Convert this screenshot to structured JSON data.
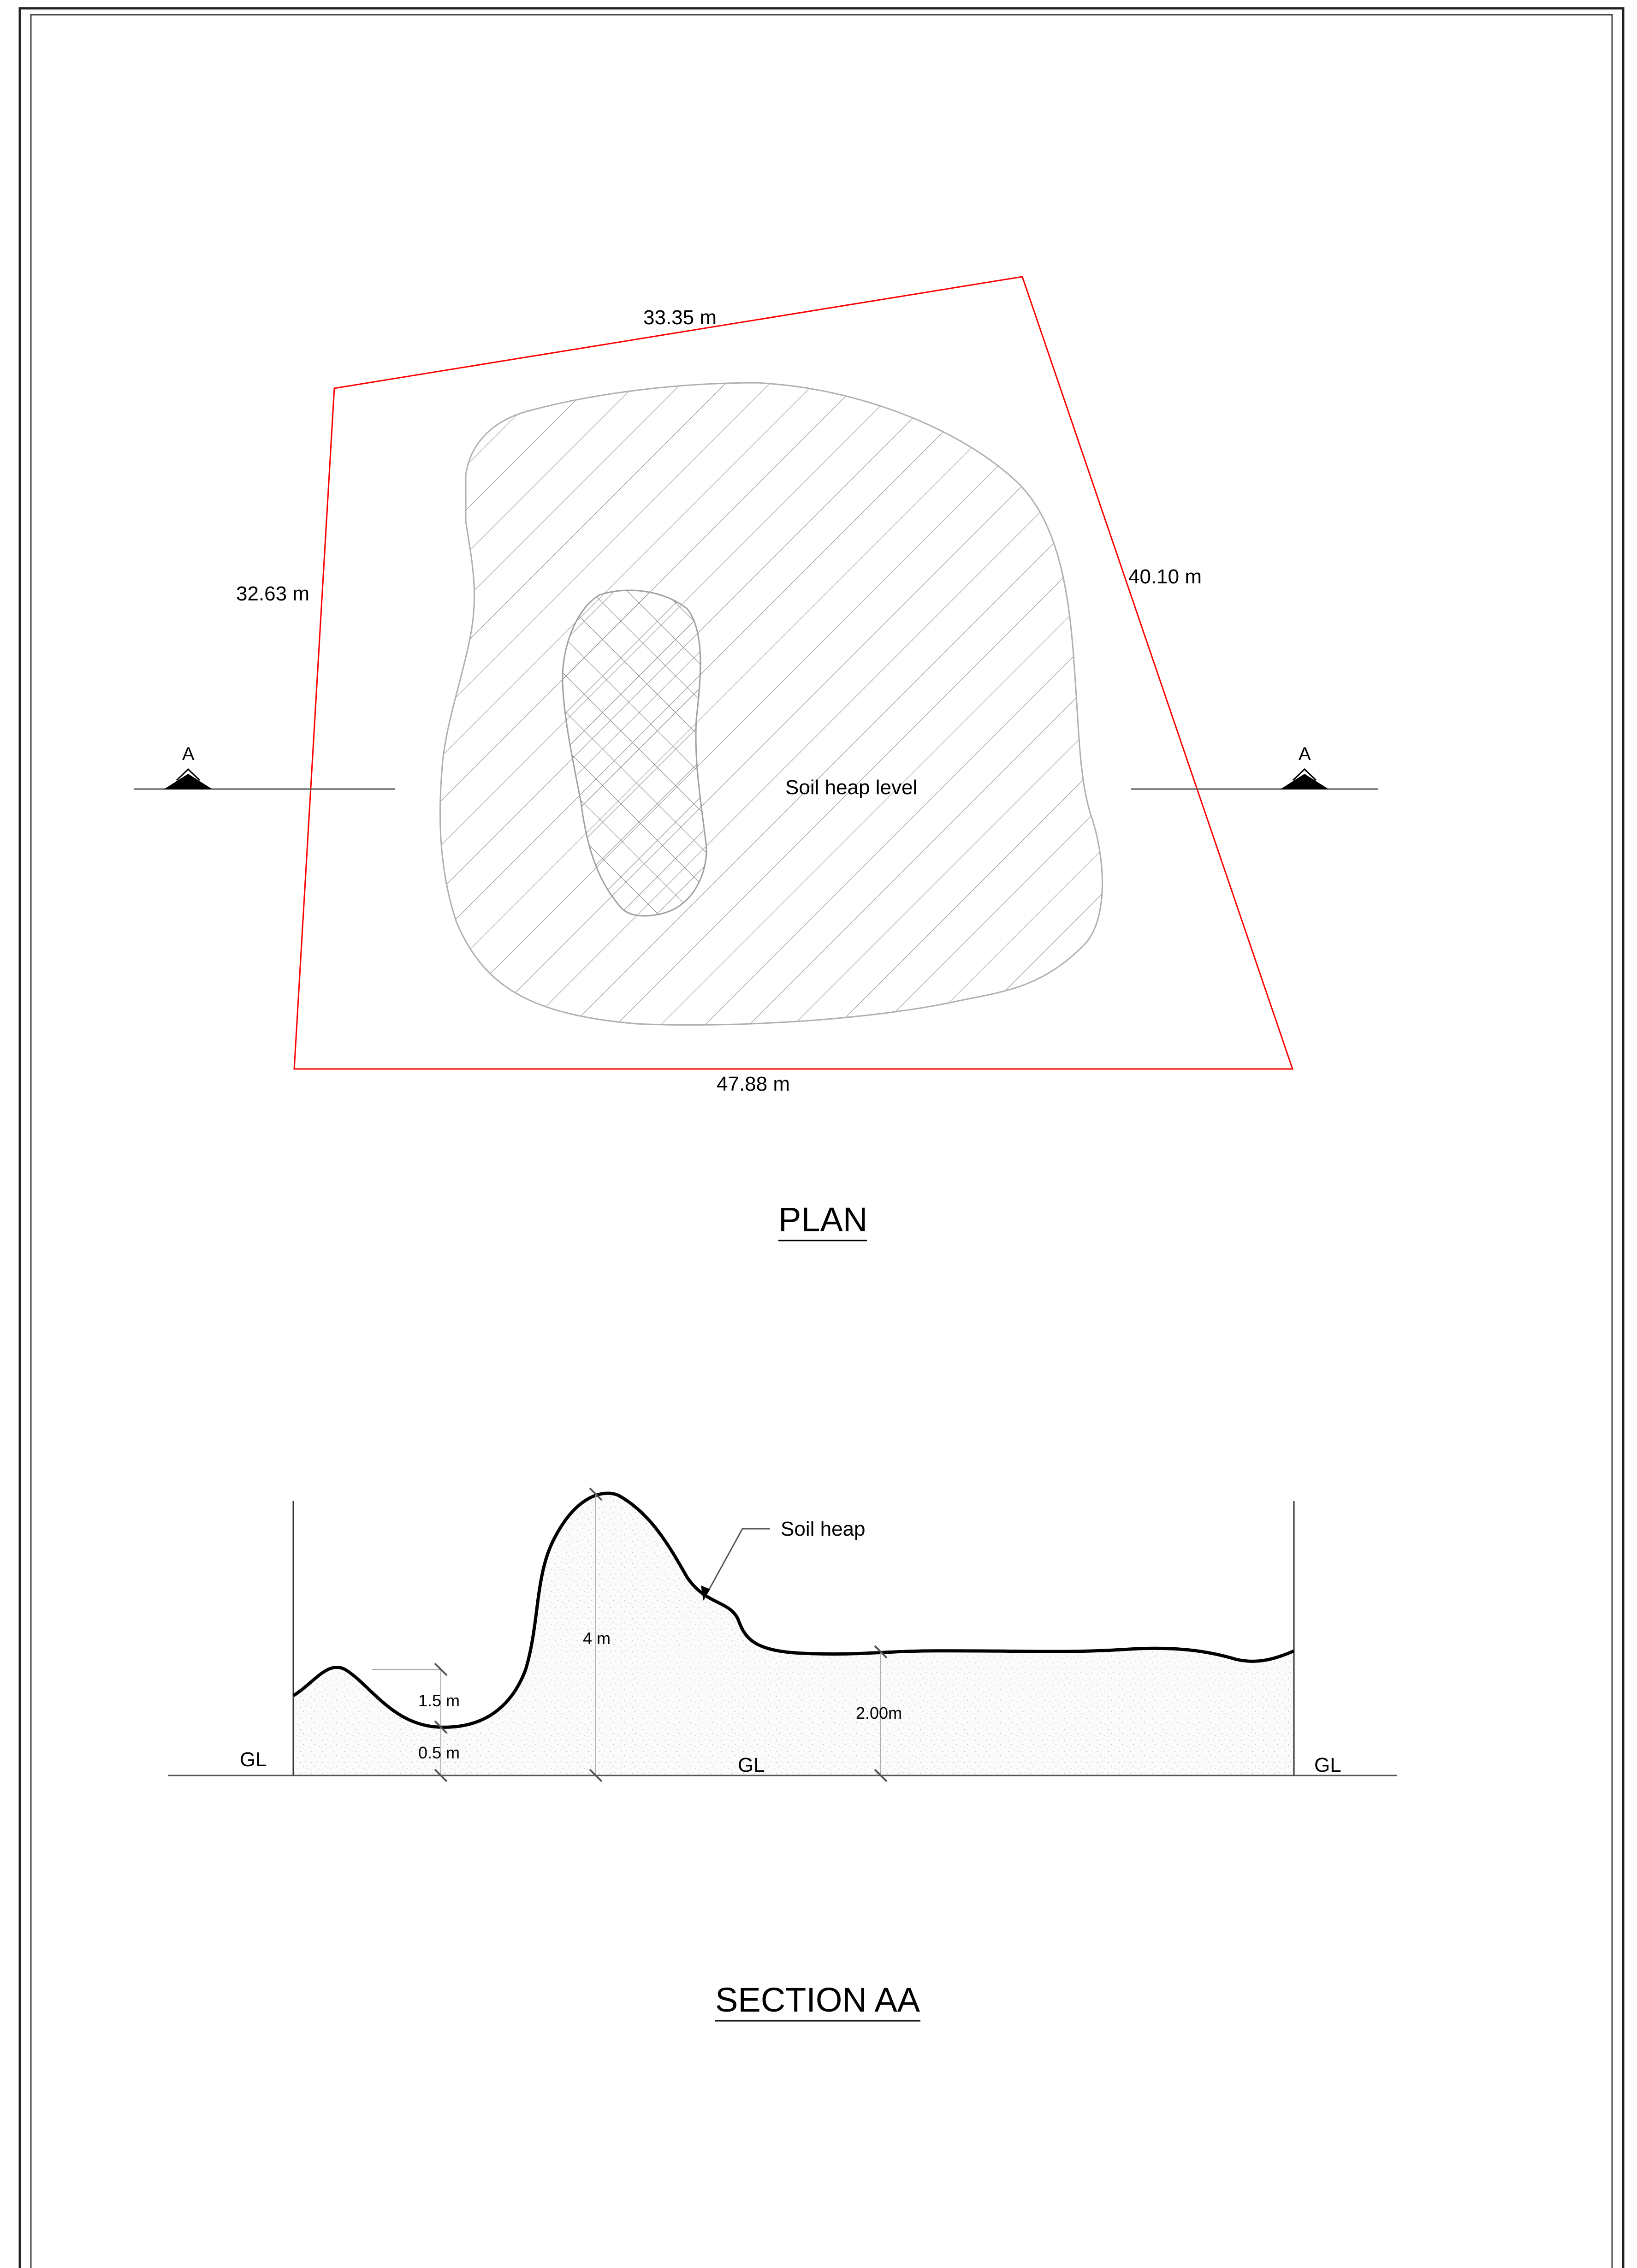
{
  "plan": {
    "title": "PLAN",
    "dimensions": {
      "top": "33.35 m",
      "left": "32.63 m",
      "right": "40.10 m",
      "bottom": "47.88 m"
    },
    "heap_label": "Soil heap level",
    "section_marker_left": "A",
    "section_marker_right": "A",
    "boundary_color": "#ff0000"
  },
  "section": {
    "title": "SECTION AA",
    "callout": "Soil heap",
    "ground_label_left": "GL",
    "ground_label_mid": "GL",
    "ground_label_right": "GL",
    "dim_small_upper": "1.5 m",
    "dim_small_lower": "0.5 m",
    "dim_peak": "4 m",
    "dim_right": "2.00m"
  }
}
